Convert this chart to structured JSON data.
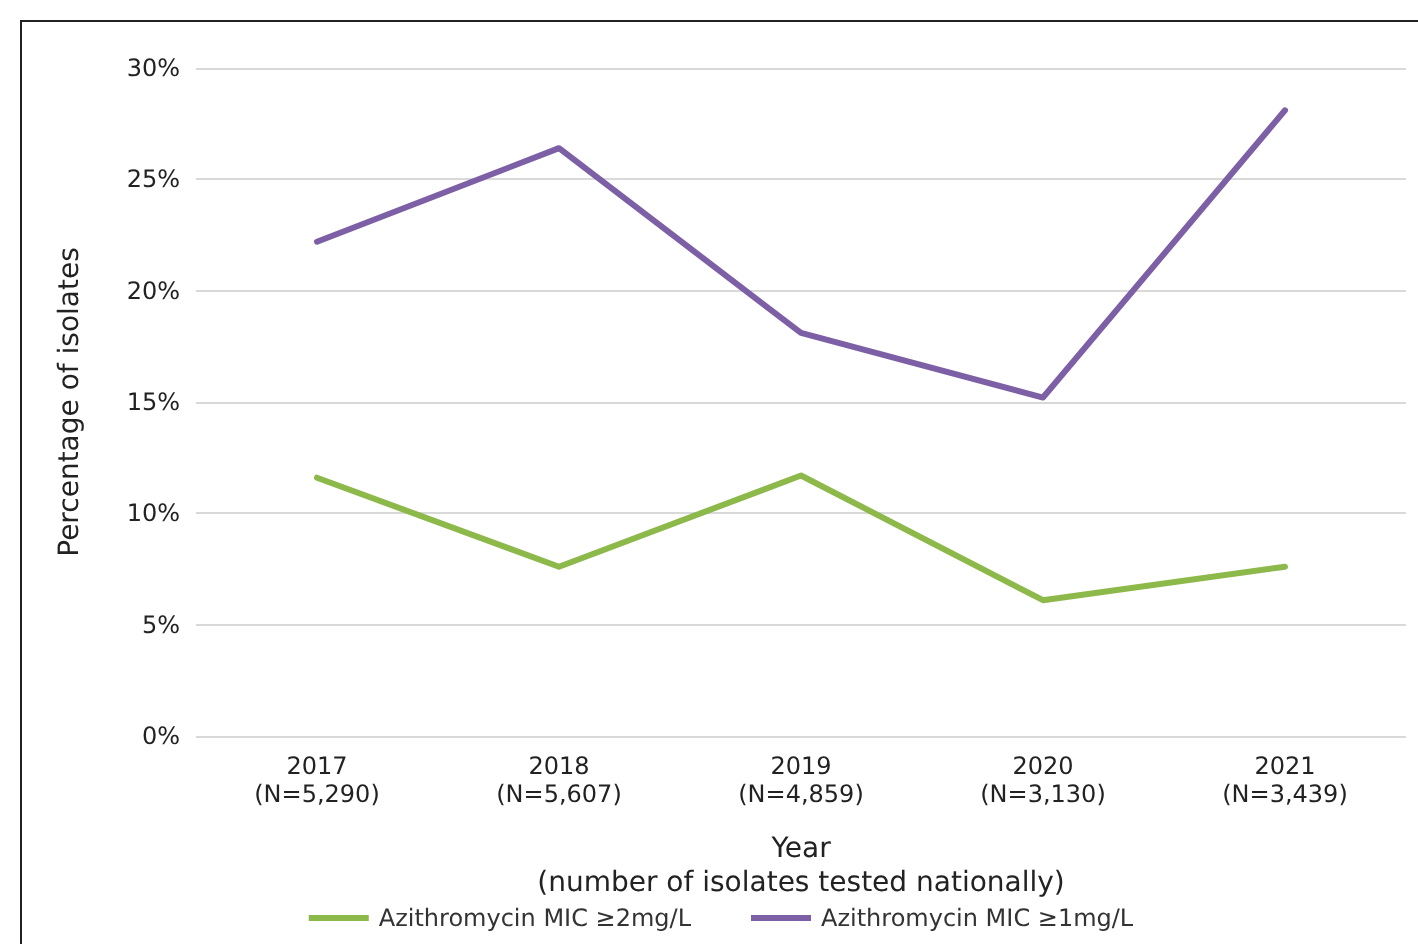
{
  "chart_data": {
    "type": "line",
    "xlabel": "Year\n(number of isolates tested nationally)",
    "ylabel": "Percentage of isolates",
    "categories": [
      "2017\n(N=5,290)",
      "2018\n(N=5,607)",
      "2019\n(N=4,859)",
      "2020\n(N=3,130)",
      "2021\n(N=3,439)"
    ],
    "series": [
      {
        "name": "Azithromycin MIC ≥2mg/L",
        "color": "#8db84a",
        "values": [
          11.6,
          7.6,
          11.7,
          6.1,
          7.6
        ]
      },
      {
        "name": "Azithromycin MIC ≥1mg/L",
        "color": "#7d5fa5",
        "values": [
          22.2,
          26.4,
          18.1,
          15.2,
          28.1
        ]
      }
    ],
    "ylim": [
      0,
      30
    ],
    "yticks": [
      {
        "value": 0,
        "label": "0%"
      },
      {
        "value": 5,
        "label": "5%"
      },
      {
        "value": 10,
        "label": "10%"
      },
      {
        "value": 15,
        "label": "15%"
      },
      {
        "value": 20,
        "label": "20%"
      },
      {
        "value": 25,
        "label": "25%"
      },
      {
        "value": 30,
        "label": "30%"
      }
    ],
    "grid": "y",
    "legend": "bottom",
    "marker": "none",
    "line_style": "solid"
  }
}
